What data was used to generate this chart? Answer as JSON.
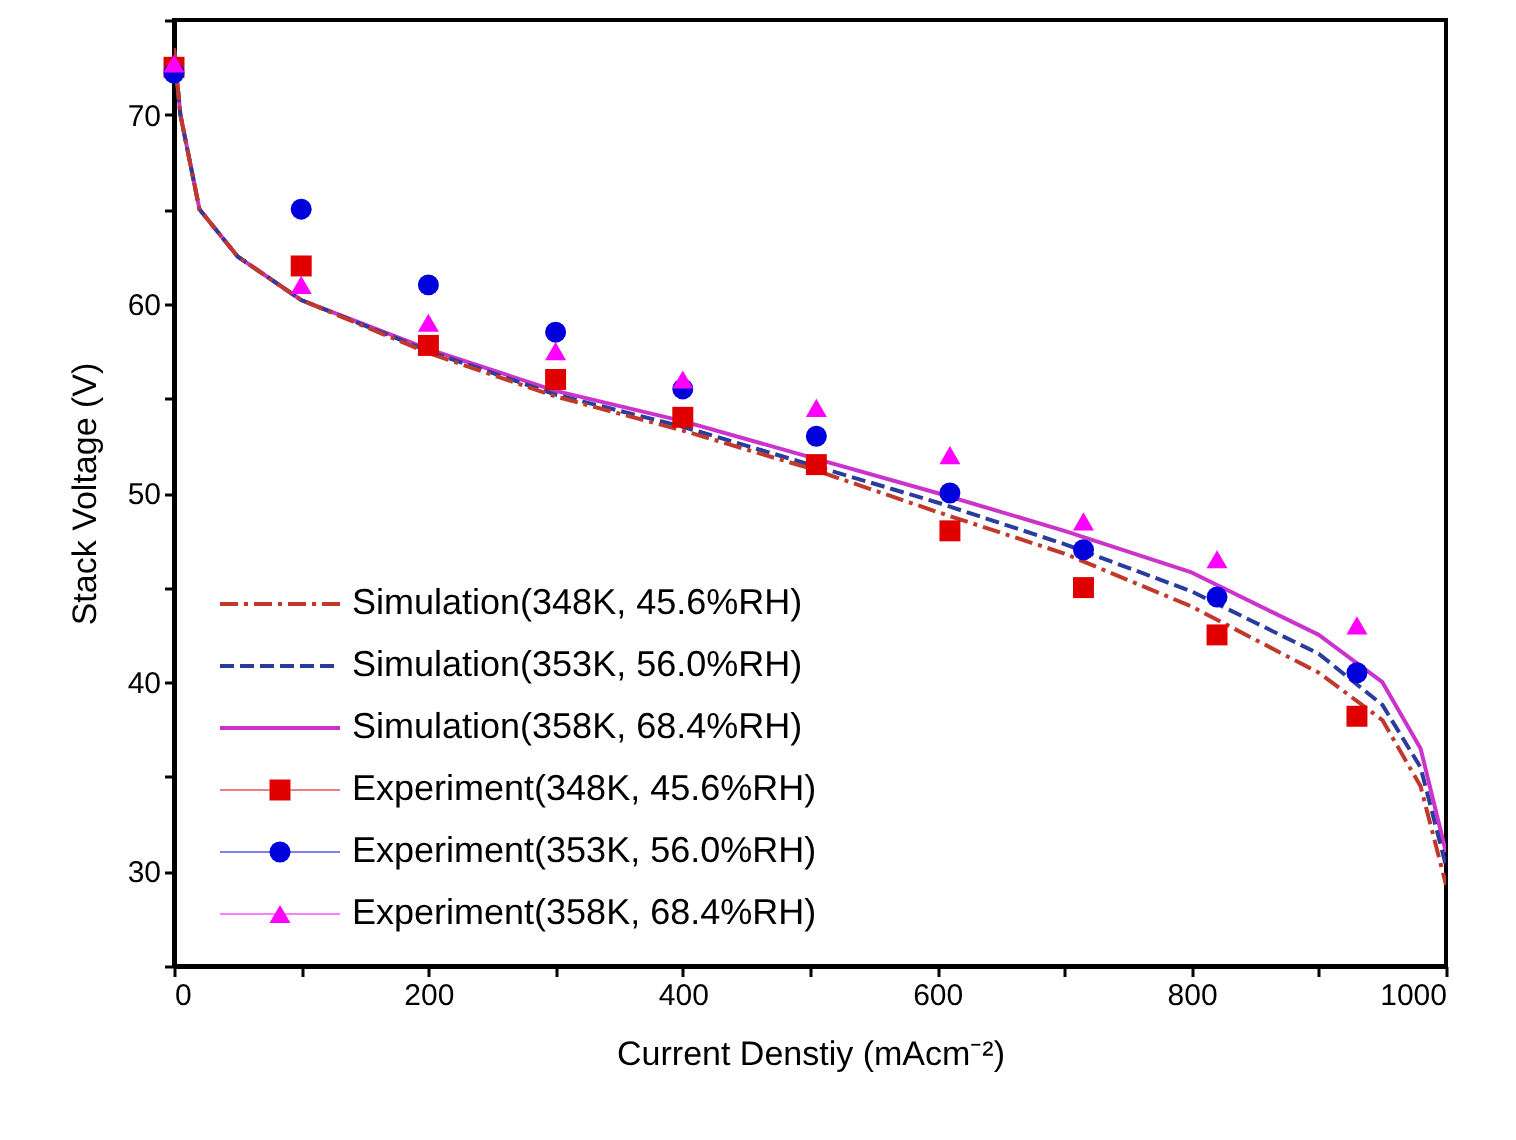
{
  "chart_data": {
    "type": "line",
    "xlabel": "Current Denstiy (mAcm⁻²)",
    "ylabel": "Stack Voltage (V)",
    "xlim": [
      0,
      1000
    ],
    "ylim": [
      25,
      75
    ],
    "xticks": [
      0,
      {
        "value": 100,
        "label": null
      },
      200,
      {
        "value": 300,
        "label": null
      },
      400,
      {
        "value": 500,
        "label": null
      },
      600,
      {
        "value": 700,
        "label": null
      },
      800,
      {
        "value": 900,
        "label": null
      },
      1000
    ],
    "yticks": [
      {
        "value": 25,
        "label": null
      },
      30,
      {
        "value": 35,
        "label": null
      },
      40,
      {
        "value": 45,
        "label": null
      },
      50,
      {
        "value": 55,
        "label": null
      },
      60,
      {
        "value": 65,
        "label": null
      },
      70,
      {
        "value": 75,
        "label": null
      }
    ],
    "grid": false,
    "legend": "bottom left",
    "series": [
      {
        "name": "Simulation(348K, 45.6%RH)",
        "type": "line",
        "line_style": "dashdot",
        "marker": "none",
        "color": "#c0392b",
        "x": [
          0,
          5,
          20,
          50,
          100,
          200,
          300,
          400,
          500,
          600,
          700,
          800,
          900,
          950,
          980,
          1000
        ],
        "values": [
          73.5,
          70,
          65,
          62.5,
          60.2,
          57.4,
          55.1,
          53.3,
          51.3,
          49,
          46.8,
          44,
          40.5,
          38,
          34.5,
          29.3
        ]
      },
      {
        "name": "Simulation(353K, 56.0%RH)",
        "type": "line",
        "line_style": "dashed",
        "marker": "none",
        "color": "#2b3d9c",
        "x": [
          0,
          5,
          20,
          50,
          100,
          200,
          300,
          400,
          500,
          600,
          700,
          800,
          900,
          950,
          980,
          1000
        ],
        "values": [
          73.5,
          70,
          65,
          62.5,
          60.2,
          57.5,
          55.2,
          53.5,
          51.5,
          49.5,
          47.3,
          44.8,
          41.5,
          38.8,
          35.5,
          30.3
        ]
      },
      {
        "name": "Simulation(358K, 68.4%RH)",
        "type": "line",
        "line_style": "solid",
        "marker": "none",
        "color": "#cc33cc",
        "x": [
          0,
          5,
          20,
          50,
          100,
          200,
          300,
          400,
          500,
          600,
          700,
          800,
          900,
          950,
          980,
          1000
        ],
        "values": [
          73.5,
          70,
          65,
          62.5,
          60.2,
          57.6,
          55.4,
          53.8,
          51.9,
          50,
          48,
          45.8,
          42.5,
          40,
          36.5,
          31
        ]
      },
      {
        "name": "Experiment(348K, 45.6%RH)",
        "type": "scatter",
        "marker": "square",
        "color": "#e00000",
        "x": [
          0,
          100,
          200,
          300,
          400,
          505,
          610,
          715,
          820,
          930
        ],
        "values": [
          72.5,
          62,
          57.8,
          56,
          54,
          51.5,
          48,
          45,
          42.5,
          38.2
        ]
      },
      {
        "name": "Experiment(353K, 56.0%RH)",
        "type": "scatter",
        "marker": "circle",
        "color": "#0000dd",
        "x": [
          0,
          100,
          200,
          300,
          400,
          505,
          610,
          715,
          820,
          930
        ],
        "values": [
          72.2,
          65,
          61,
          58.5,
          55.5,
          53,
          50,
          47,
          44.5,
          40.5
        ]
      },
      {
        "name": "Experiment(358K, 68.4%RH)",
        "type": "scatter",
        "marker": "triangle",
        "color": "#ff00ff",
        "x": [
          0,
          100,
          200,
          300,
          400,
          505,
          610,
          715,
          820,
          930
        ],
        "values": [
          72.7,
          61,
          59,
          57.5,
          56,
          54.5,
          52,
          48.5,
          46.5,
          43
        ]
      }
    ]
  }
}
